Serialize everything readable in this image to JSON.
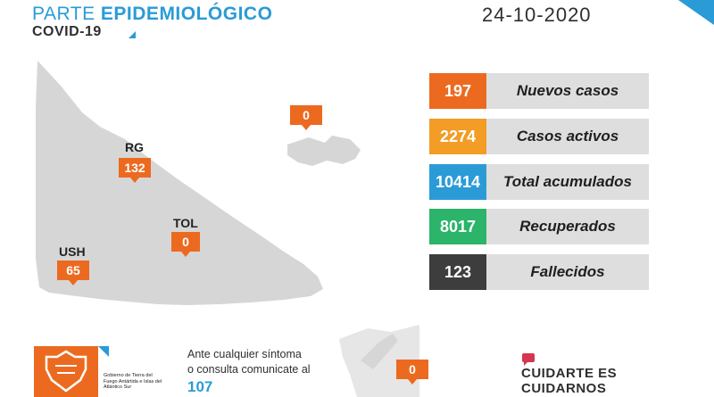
{
  "header": {
    "title_light": "PARTE ",
    "title_bold": "EPIDEMIOLÓGICO",
    "subtitle": "COVID-19",
    "date": "24-10-2020"
  },
  "map": {
    "markers": [
      {
        "id": "rg",
        "label": "RG",
        "value": "132"
      },
      {
        "id": "tol",
        "label": "TOL",
        "value": "0"
      },
      {
        "id": "ush",
        "label": "USH",
        "value": "65"
      },
      {
        "id": "malvinas",
        "value": "0"
      },
      {
        "id": "antartida",
        "value": "0"
      }
    ]
  },
  "stats": [
    {
      "value": "197",
      "label": "Nuevos casos",
      "color": "#ec6a1f"
    },
    {
      "value": "2274",
      "label": "Casos activos",
      "color": "#f39c26"
    },
    {
      "value": "10414",
      "label": "Total acumulados",
      "color": "#2a9bd6"
    },
    {
      "value": "8017",
      "label": "Recuperados",
      "color": "#2bb46a"
    },
    {
      "value": "123",
      "label": "Fallecidos",
      "color": "#3d3d3d"
    }
  ],
  "footer": {
    "gov_text": "Gobierno de Tierra del Fuego Antártida e Islas del Atlántico Sur",
    "consult_line1": "Ante cualquier síntoma",
    "consult_line2": "o consulta comunicate al",
    "phone": "107",
    "slogan_line1": "CUIDARTE ES",
    "slogan_line2": "CUIDARNOS"
  },
  "colors": {
    "accent_blue": "#2a9bd6",
    "accent_orange": "#ec6a1f",
    "map_gray": "#d6d6d6"
  }
}
